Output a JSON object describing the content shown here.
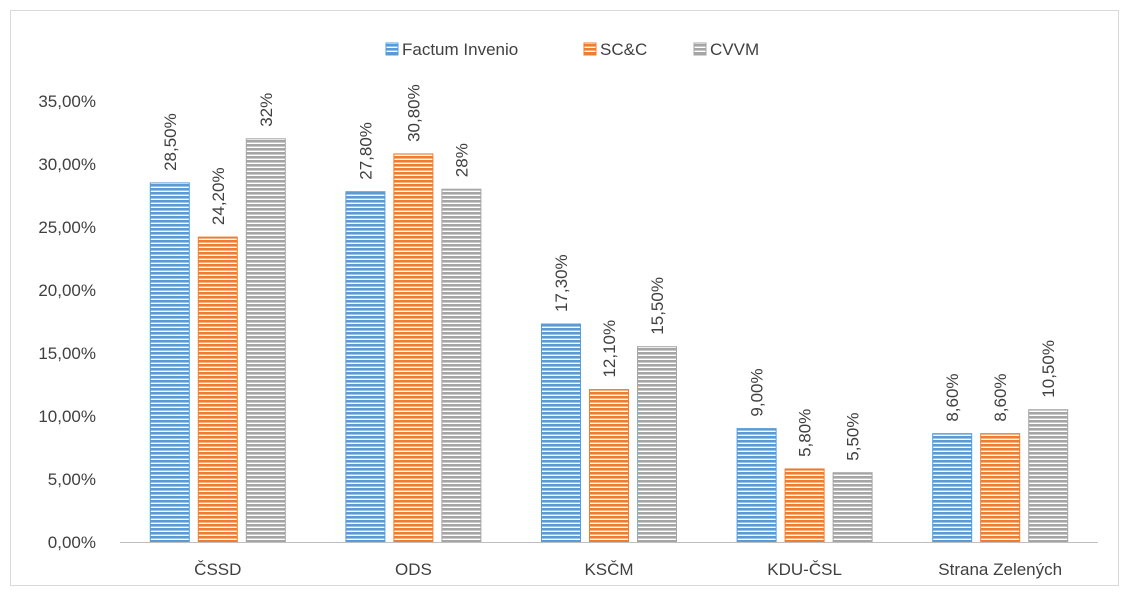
{
  "chart_data": {
    "type": "bar",
    "title": "",
    "xlabel": "",
    "ylabel": "",
    "categories": [
      "ČSSD",
      "ODS",
      "KSČM",
      "KDU-ČSL",
      "Strana Zelených"
    ],
    "series": [
      {
        "name": "Factum Invenio",
        "color": "#5b9bd5",
        "values": [
          28.5,
          27.8,
          17.3,
          9.0,
          8.6
        ],
        "labels": [
          "28,50%",
          "27,80%",
          "17,30%",
          "9,00%",
          "8,60%"
        ]
      },
      {
        "name": "SC&C",
        "color": "#ed7d31",
        "values": [
          24.2,
          30.8,
          12.1,
          5.8,
          8.6
        ],
        "labels": [
          "24,20%",
          "30,80%",
          "12,10%",
          "5,80%",
          "8,60%"
        ]
      },
      {
        "name": "CVVM",
        "color": "#a5a5a5",
        "values": [
          32,
          28,
          15.5,
          5.5,
          10.5
        ],
        "labels": [
          "32%",
          "28%",
          "15,50%",
          "5,50%",
          "10,50%"
        ]
      }
    ],
    "ylim": [
      0,
      35
    ],
    "yticks": [
      0,
      5,
      10,
      15,
      20,
      25,
      30,
      35
    ],
    "ytick_labels": [
      "0,00%",
      "5,00%",
      "10,00%",
      "15,00%",
      "20,00%",
      "25,00%",
      "30,00%",
      "35,00%"
    ],
    "grid": false,
    "legend_position": "top-center",
    "bar_pattern": "horizontal-stripes"
  }
}
